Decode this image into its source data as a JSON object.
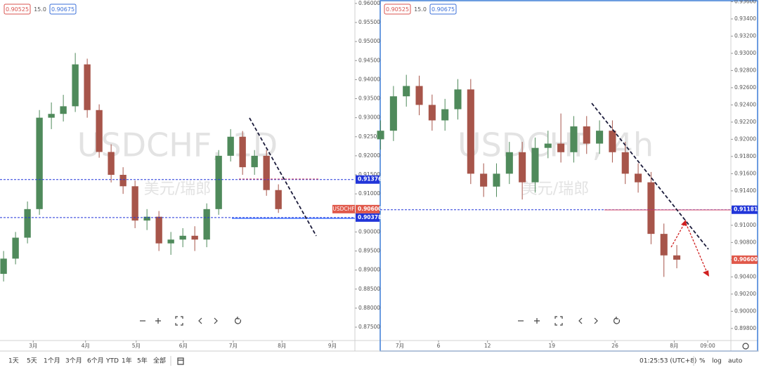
{
  "chart_data": [
    {
      "type": "candlestick",
      "title": "USDCHF, 1D",
      "subtitle": "美元/瑞郎",
      "header_labels": [
        "0.90525",
        "15.0",
        "0.90675"
      ],
      "symbol_tag": "USDCHF",
      "colors": {
        "up": "#4f8a5b",
        "down": "#a7554a"
      },
      "x": [
        0,
        5,
        10,
        15,
        20,
        25,
        30,
        35,
        40,
        45,
        50,
        55,
        60,
        65,
        70,
        75,
        80,
        85,
        90,
        95,
        100,
        105,
        110,
        115
      ],
      "open": [
        0.889,
        0.893,
        0.8985,
        0.906,
        0.93,
        0.931,
        0.933,
        0.944,
        0.932,
        0.921,
        0.915,
        0.912,
        0.903,
        0.904,
        0.897,
        0.898,
        0.899,
        0.898,
        0.906,
        0.92,
        0.925,
        0.917,
        0.92,
        0.911
      ],
      "high": [
        0.895,
        0.9,
        0.908,
        0.932,
        0.934,
        0.936,
        0.947,
        0.9455,
        0.9335,
        0.923,
        0.917,
        0.9135,
        0.906,
        0.9055,
        0.9,
        0.901,
        0.9015,
        0.9075,
        0.9215,
        0.927,
        0.9265,
        0.9215,
        0.9215,
        0.9125
      ],
      "low": [
        0.887,
        0.8915,
        0.897,
        0.9045,
        0.927,
        0.929,
        0.9315,
        0.93,
        0.9195,
        0.913,
        0.91,
        0.901,
        0.9005,
        0.895,
        0.894,
        0.896,
        0.895,
        0.896,
        0.9045,
        0.9185,
        0.915,
        0.915,
        0.9095,
        0.905
      ],
      "close": [
        0.893,
        0.8985,
        0.906,
        0.93,
        0.931,
        0.933,
        0.944,
        0.932,
        0.921,
        0.915,
        0.912,
        0.903,
        0.904,
        0.897,
        0.898,
        0.899,
        0.898,
        0.906,
        0.92,
        0.925,
        0.917,
        0.92,
        0.911,
        0.906
      ],
      "xlim": [
        -1.5,
        147
      ],
      "xticks": [
        {
          "value": 12.4,
          "label": "3月"
        },
        {
          "value": 34.3,
          "label": "4月"
        },
        {
          "value": 55.5,
          "label": "5月"
        },
        {
          "value": 75.2,
          "label": "6月"
        },
        {
          "value": 96.1,
          "label": "7月"
        },
        {
          "value": 116.5,
          "label": "8月"
        },
        {
          "value": 137.6,
          "label": "9月"
        }
      ],
      "ylim": [
        0.8715,
        0.9609
      ],
      "yticks": [
        {
          "value": 0.96,
          "label": "0.96000"
        },
        {
          "value": 0.955,
          "label": "0.95500"
        },
        {
          "value": 0.95,
          "label": "0.95000"
        },
        {
          "value": 0.945,
          "label": "0.94500"
        },
        {
          "value": 0.94,
          "label": "0.94000"
        },
        {
          "value": 0.935,
          "label": "0.93500"
        },
        {
          "value": 0.93,
          "label": "0.93000"
        },
        {
          "value": 0.925,
          "label": "0.92500"
        },
        {
          "value": 0.92,
          "label": "0.92000"
        },
        {
          "value": 0.915,
          "label": "0.91500"
        },
        {
          "value": 0.91,
          "label": "0.91000"
        },
        {
          "value": 0.905,
          "label": "0.90500"
        },
        {
          "value": 0.9,
          "label": "0.90000"
        },
        {
          "value": 0.895,
          "label": "0.89500"
        },
        {
          "value": 0.89,
          "label": "0.89000"
        },
        {
          "value": 0.885,
          "label": "0.88500"
        },
        {
          "value": 0.88,
          "label": "0.88000"
        },
        {
          "value": 0.875,
          "label": "0.87500"
        }
      ],
      "last_price": {
        "value": 0.906,
        "label": "0.90600",
        "color": "#e0584a"
      },
      "levels": [
        {
          "value": 0.91376,
          "label": "0.91376",
          "color": "#2135d9"
        },
        {
          "value": 0.90378,
          "label": "0.90378",
          "color": "#2135d9"
        }
      ]
    },
    {
      "type": "candlestick",
      "title": "USDCHF, 4h",
      "subtitle": "美元/瑞郎",
      "header_labels": [
        "0.90525",
        "15.0",
        "0.90675"
      ],
      "colors": {
        "up": "#4f8a5b",
        "down": "#a7554a"
      },
      "x": [
        -1.5,
        -0.5,
        0.5,
        1.5,
        2.5,
        3.5,
        4.5,
        5.5,
        6.5,
        7.5,
        8.5,
        9.5,
        10.5,
        11.5,
        12.5,
        13.5,
        14.5,
        15.5,
        16.5,
        17.5,
        18.5,
        19.5,
        20.5,
        21.5
      ],
      "open": [
        0.92,
        0.921,
        0.925,
        0.9262,
        0.924,
        0.9222,
        0.9235,
        0.9258,
        0.916,
        0.9145,
        0.916,
        0.9185,
        0.915,
        0.919,
        0.9195,
        0.9185,
        0.9215,
        0.9195,
        0.921,
        0.9185,
        0.916,
        0.915,
        0.909,
        0.9065
      ],
      "high": [
        0.9222,
        0.9262,
        0.9275,
        0.9274,
        0.9252,
        0.9247,
        0.927,
        0.927,
        0.9172,
        0.9172,
        0.9197,
        0.9197,
        0.9202,
        0.921,
        0.923,
        0.9227,
        0.9227,
        0.9222,
        0.9222,
        0.9197,
        0.9172,
        0.9162,
        0.9102,
        0.9077
      ],
      "low": [
        0.9188,
        0.9198,
        0.9238,
        0.9228,
        0.921,
        0.921,
        0.9223,
        0.9148,
        0.9133,
        0.9133,
        0.9148,
        0.913,
        0.9138,
        0.9178,
        0.9173,
        0.9173,
        0.9183,
        0.9183,
        0.9173,
        0.9148,
        0.9138,
        0.9078,
        0.904,
        0.905
      ],
      "close": [
        0.921,
        0.925,
        0.9262,
        0.924,
        0.9222,
        0.9235,
        0.9258,
        0.916,
        0.9145,
        0.916,
        0.9185,
        0.915,
        0.919,
        0.9195,
        0.9185,
        0.9215,
        0.9195,
        0.921,
        0.9185,
        0.916,
        0.915,
        0.909,
        0.9065,
        0.906
      ],
      "xlim": [
        -1.53,
        25.7
      ],
      "xticks": [
        {
          "value": 0,
          "label": "7月"
        },
        {
          "value": 3,
          "label": "6"
        },
        {
          "value": 6.8,
          "label": "12"
        },
        {
          "value": 11.8,
          "label": "19"
        },
        {
          "value": 16.7,
          "label": "26"
        },
        {
          "value": 21.3,
          "label": "8月"
        },
        {
          "value": 23.9,
          "label": "09:00"
        }
      ],
      "ylim": [
        0.8966,
        0.9362
      ],
      "yticks": [
        {
          "value": 0.936,
          "label": "0.93600"
        },
        {
          "value": 0.934,
          "label": "0.93400"
        },
        {
          "value": 0.932,
          "label": "0.93200"
        },
        {
          "value": 0.93,
          "label": "0.93000"
        },
        {
          "value": 0.928,
          "label": "0.92800"
        },
        {
          "value": 0.926,
          "label": "0.92600"
        },
        {
          "value": 0.924,
          "label": "0.92400"
        },
        {
          "value": 0.922,
          "label": "0.92200"
        },
        {
          "value": 0.92,
          "label": "0.92000"
        },
        {
          "value": 0.918,
          "label": "0.91800"
        },
        {
          "value": 0.916,
          "label": "0.91600"
        },
        {
          "value": 0.914,
          "label": "0.91400"
        },
        {
          "value": 0.912,
          "label": "0.91200"
        },
        {
          "value": 0.91,
          "label": "0.91000"
        },
        {
          "value": 0.908,
          "label": "0.90800"
        },
        {
          "value": 0.906,
          "label": "0.90600"
        },
        {
          "value": 0.904,
          "label": "0.90400"
        },
        {
          "value": 0.902,
          "label": "0.90200"
        },
        {
          "value": 0.9,
          "label": "0.90000"
        },
        {
          "value": 0.898,
          "label": "0.89800"
        }
      ],
      "last_price": {
        "value": 0.906,
        "label": "0.90600",
        "color": "#e0584a"
      },
      "levels": [
        {
          "value": 0.91181,
          "label": "0.91181",
          "color": "#2135d9"
        }
      ]
    }
  ],
  "toolbar": {
    "ranges": [
      "1天",
      "5天",
      "1个月",
      "3个月",
      "6个月",
      "YTD",
      "1年",
      "5年",
      "全部"
    ],
    "time": "01:25:53 (UTC+8)",
    "options": [
      "%",
      "log",
      "auto"
    ]
  }
}
